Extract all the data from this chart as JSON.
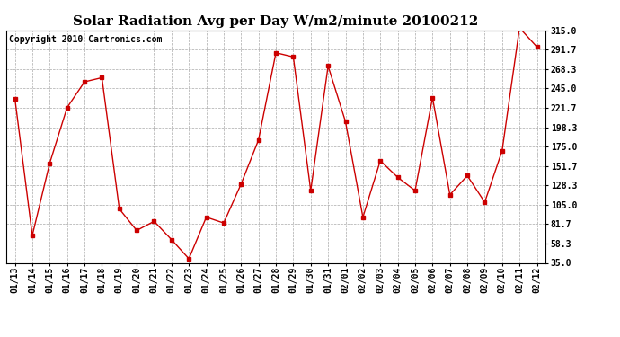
{
  "title": "Solar Radiation Avg per Day W/m2/minute 20100212",
  "copyright": "Copyright 2010 Cartronics.com",
  "dates": [
    "01/13",
    "01/14",
    "01/15",
    "01/16",
    "01/17",
    "01/18",
    "01/19",
    "01/20",
    "01/21",
    "01/22",
    "01/23",
    "01/24",
    "01/25",
    "01/26",
    "01/27",
    "01/28",
    "01/29",
    "01/30",
    "01/31",
    "02/01",
    "02/02",
    "02/03",
    "02/04",
    "02/05",
    "02/06",
    "02/07",
    "02/08",
    "02/09",
    "02/10",
    "02/11",
    "02/12"
  ],
  "values": [
    233,
    68,
    155,
    222,
    253,
    258,
    100,
    74,
    85,
    63,
    40,
    90,
    83,
    130,
    183,
    288,
    283,
    122,
    272,
    205,
    90,
    158,
    138,
    122,
    234,
    117,
    140,
    108,
    170,
    318,
    295
  ],
  "line_color": "#cc0000",
  "marker": "s",
  "markersize": 3,
  "bg_color": "#ffffff",
  "plot_bg_color": "#ffffff",
  "grid_color": "#aaaaaa",
  "ylim": [
    35.0,
    315.0
  ],
  "yticks": [
    35.0,
    58.3,
    81.7,
    105.0,
    128.3,
    151.7,
    175.0,
    198.3,
    221.7,
    245.0,
    268.3,
    291.7,
    315.0
  ],
  "title_fontsize": 11,
  "copyright_fontsize": 7,
  "tick_fontsize": 7
}
